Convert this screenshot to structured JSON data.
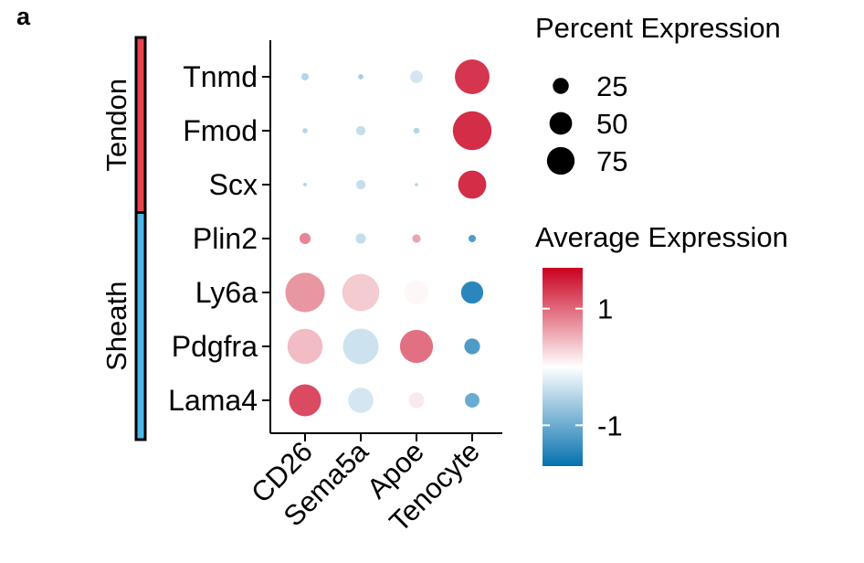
{
  "panel_label": "a",
  "chart_data": {
    "type": "dotplot",
    "genes": [
      "Tnmd",
      "Fmod",
      "Scx",
      "Plin2",
      "Ly6a",
      "Pdgfra",
      "Lama4"
    ],
    "clusters": [
      "CD26",
      "Sema5a",
      "Apoe",
      "Tenocyte"
    ],
    "groups": [
      {
        "name": "Tendon",
        "genes": [
          "Tnmd",
          "Fmod",
          "Scx"
        ],
        "color": "#e8454f"
      },
      {
        "name": "Sheath",
        "genes": [
          "Plin2",
          "Ly6a",
          "Pdgfra",
          "Lama4"
        ],
        "color": "#4db8e6"
      }
    ],
    "points": [
      {
        "gene": "Tnmd",
        "cluster": "CD26",
        "pct": 3,
        "avg": -0.5
      },
      {
        "gene": "Tnmd",
        "cluster": "Sema5a",
        "pct": 1.5,
        "avg": -0.6
      },
      {
        "gene": "Tnmd",
        "cluster": "Apoe",
        "pct": 9,
        "avg": -0.3
      },
      {
        "gene": "Tnmd",
        "cluster": "Tenocyte",
        "pct": 68,
        "avg": 1.35
      },
      {
        "gene": "Fmod",
        "cluster": "CD26",
        "pct": 1.5,
        "avg": -0.5
      },
      {
        "gene": "Fmod",
        "cluster": "Sema5a",
        "pct": 5,
        "avg": -0.4
      },
      {
        "gene": "Fmod",
        "cluster": "Apoe",
        "pct": 2,
        "avg": -0.5
      },
      {
        "gene": "Fmod",
        "cluster": "Tenocyte",
        "pct": 85,
        "avg": 1.4
      },
      {
        "gene": "Scx",
        "cluster": "CD26",
        "pct": 0.8,
        "avg": -0.5
      },
      {
        "gene": "Scx",
        "cluster": "Sema5a",
        "pct": 5,
        "avg": -0.4
      },
      {
        "gene": "Scx",
        "cluster": "Apoe",
        "pct": 0.6,
        "avg": -0.5
      },
      {
        "gene": "Scx",
        "cluster": "Tenocyte",
        "pct": 45,
        "avg": 1.4
      },
      {
        "gene": "Plin2",
        "cluster": "CD26",
        "pct": 7,
        "avg": 0.8
      },
      {
        "gene": "Plin2",
        "cluster": "Sema5a",
        "pct": 6,
        "avg": -0.4
      },
      {
        "gene": "Plin2",
        "cluster": "Apoe",
        "pct": 4,
        "avg": 0.6
      },
      {
        "gene": "Plin2",
        "cluster": "Tenocyte",
        "pct": 3,
        "avg": -1.2
      },
      {
        "gene": "Ly6a",
        "cluster": "CD26",
        "pct": 88,
        "avg": 0.7
      },
      {
        "gene": "Ly6a",
        "cluster": "Sema5a",
        "pct": 78,
        "avg": 0.35
      },
      {
        "gene": "Ly6a",
        "cluster": "Apoe",
        "pct": 33,
        "avg": 0.05
      },
      {
        "gene": "Ly6a",
        "cluster": "Tenocyte",
        "pct": 28,
        "avg": -1.45
      },
      {
        "gene": "Pdgfra",
        "cluster": "CD26",
        "pct": 70,
        "avg": 0.45
      },
      {
        "gene": "Pdgfra",
        "cluster": "Sema5a",
        "pct": 72,
        "avg": -0.35
      },
      {
        "gene": "Pdgfra",
        "cluster": "Apoe",
        "pct": 62,
        "avg": 0.95
      },
      {
        "gene": "Pdgfra",
        "cluster": "Tenocyte",
        "pct": 14,
        "avg": -1.2
      },
      {
        "gene": "Lama4",
        "cluster": "CD26",
        "pct": 58,
        "avg": 1.2
      },
      {
        "gene": "Lama4",
        "cluster": "Sema5a",
        "pct": 36,
        "avg": -0.3
      },
      {
        "gene": "Lama4",
        "cluster": "Apoe",
        "pct": 14,
        "avg": 0.15
      },
      {
        "gene": "Lama4",
        "cluster": "Tenocyte",
        "pct": 12,
        "avg": -1.0
      }
    ],
    "size_legend": {
      "title": "Percent Expression",
      "breaks": [
        25,
        50,
        75
      ]
    },
    "color_legend": {
      "title": "Average Expression",
      "range": [
        -1.7,
        1.7
      ],
      "tick_values": [
        1,
        -1
      ],
      "tick_labels": [
        "1",
        "-1"
      ],
      "low_color": "#0571b0",
      "mid_color": "#ffffff",
      "high_color": "#ca0020"
    }
  }
}
